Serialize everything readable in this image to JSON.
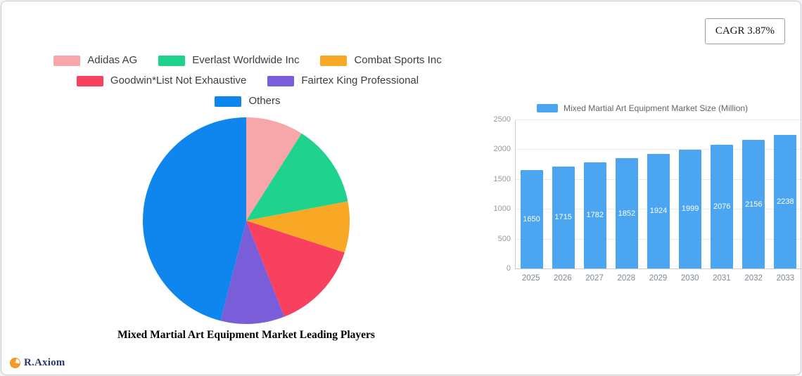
{
  "card": {
    "cagr_label": "CAGR 3.87%",
    "brand": "R.Axiom"
  },
  "chart_data": [
    {
      "type": "pie",
      "title": "Mixed Martial Art Equipment Market Leading Players",
      "labels": [
        "Adidas AG",
        "Everlast Worldwide Inc",
        "Combat Sports Inc",
        "Goodwin*List Not Exhaustive",
        "Fairtex King Professional",
        "Others"
      ],
      "values": [
        9,
        13,
        8,
        14,
        10,
        46
      ],
      "colors": [
        "#f7a6aa",
        "#1fd38f",
        "#f8a825",
        "#f8405f",
        "#7a5dd8",
        "#0e86ee"
      ],
      "legend_rows": [
        [
          0,
          1,
          2
        ],
        [
          3,
          4
        ],
        [
          5
        ]
      ],
      "legend_position": "top",
      "start_angle_deg": -90,
      "direction": "clockwise"
    },
    {
      "type": "bar",
      "legend": "Mixed Martial Art Equipment Market Size (Million)",
      "categories": [
        "2025",
        "2026",
        "2027",
        "2028",
        "2029",
        "2030",
        "2031",
        "2032",
        "2033"
      ],
      "values": [
        1650,
        1715,
        1782,
        1852,
        1924,
        1999,
        2076,
        2156,
        2238
      ],
      "bar_color": "#4ba5f1",
      "xlabel": "",
      "ylabel": "",
      "ylim": [
        0,
        2500
      ],
      "yticks": [
        0,
        500,
        1000,
        1500,
        2000,
        2500
      ],
      "grid": true,
      "value_labels": "inside-white",
      "legend_position": "top"
    }
  ]
}
